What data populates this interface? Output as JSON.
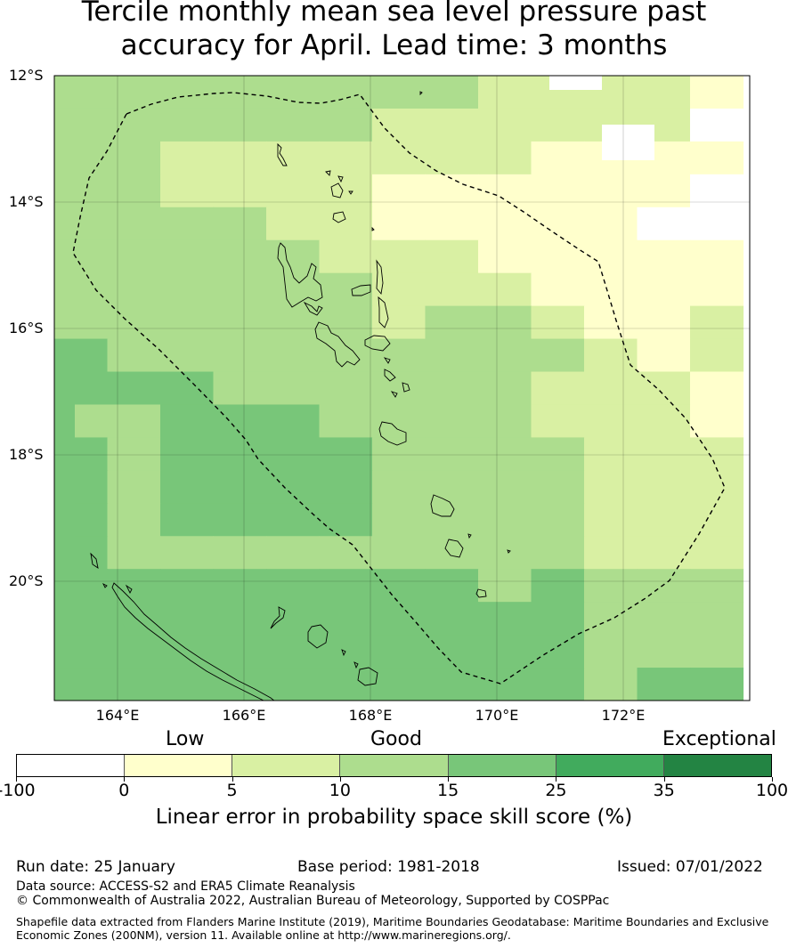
{
  "title": {
    "line1": "Tercile monthly mean sea level pressure past",
    "line2": "accuracy for April. Lead time: 3 months"
  },
  "map": {
    "lat_labels": [
      "12°S",
      "14°S",
      "16°S",
      "18°S",
      "20°S"
    ],
    "lon_labels": [
      "164°E",
      "166°E",
      "168°E",
      "170°E",
      "172°E"
    ],
    "lon_range": [
      163.0,
      174.0
    ],
    "lat_range": [
      -21.9,
      -12.0
    ],
    "grid": "on"
  },
  "colorbar": {
    "categories": [
      "Low",
      "Good",
      "Exceptional"
    ],
    "ticks": [
      "-100",
      "0",
      "5",
      "10",
      "15",
      "25",
      "35",
      "100"
    ],
    "colors": [
      "#ffffff",
      "#ffffcc",
      "#d9f0a3",
      "#addd8e",
      "#78c679",
      "#41ab5d",
      "#238443"
    ],
    "label": "Linear error in probability space skill score (%)"
  },
  "footer": {
    "run_date": "Run date: 25 January",
    "base_period": "Base period: 1981-2018",
    "issued": "Issued: 07/01/2022",
    "data_source": "Data source: ACCESS-S2 and ERA5 Climate Reanalysis",
    "copyright": "© Commonwealth of Australia 2022, Australian Bureau of Meteorology, Supported by COSPPac",
    "shapefile_line1": "Shapefile data extracted from Flanders Marine Institute (2019), Maritime Boundaries Geodatabase: Maritime Boundaries and Exclusive",
    "shapefile_line2": "Economic Zones (200NM), version 11. Available online at http://www.marineregions.org/."
  }
}
